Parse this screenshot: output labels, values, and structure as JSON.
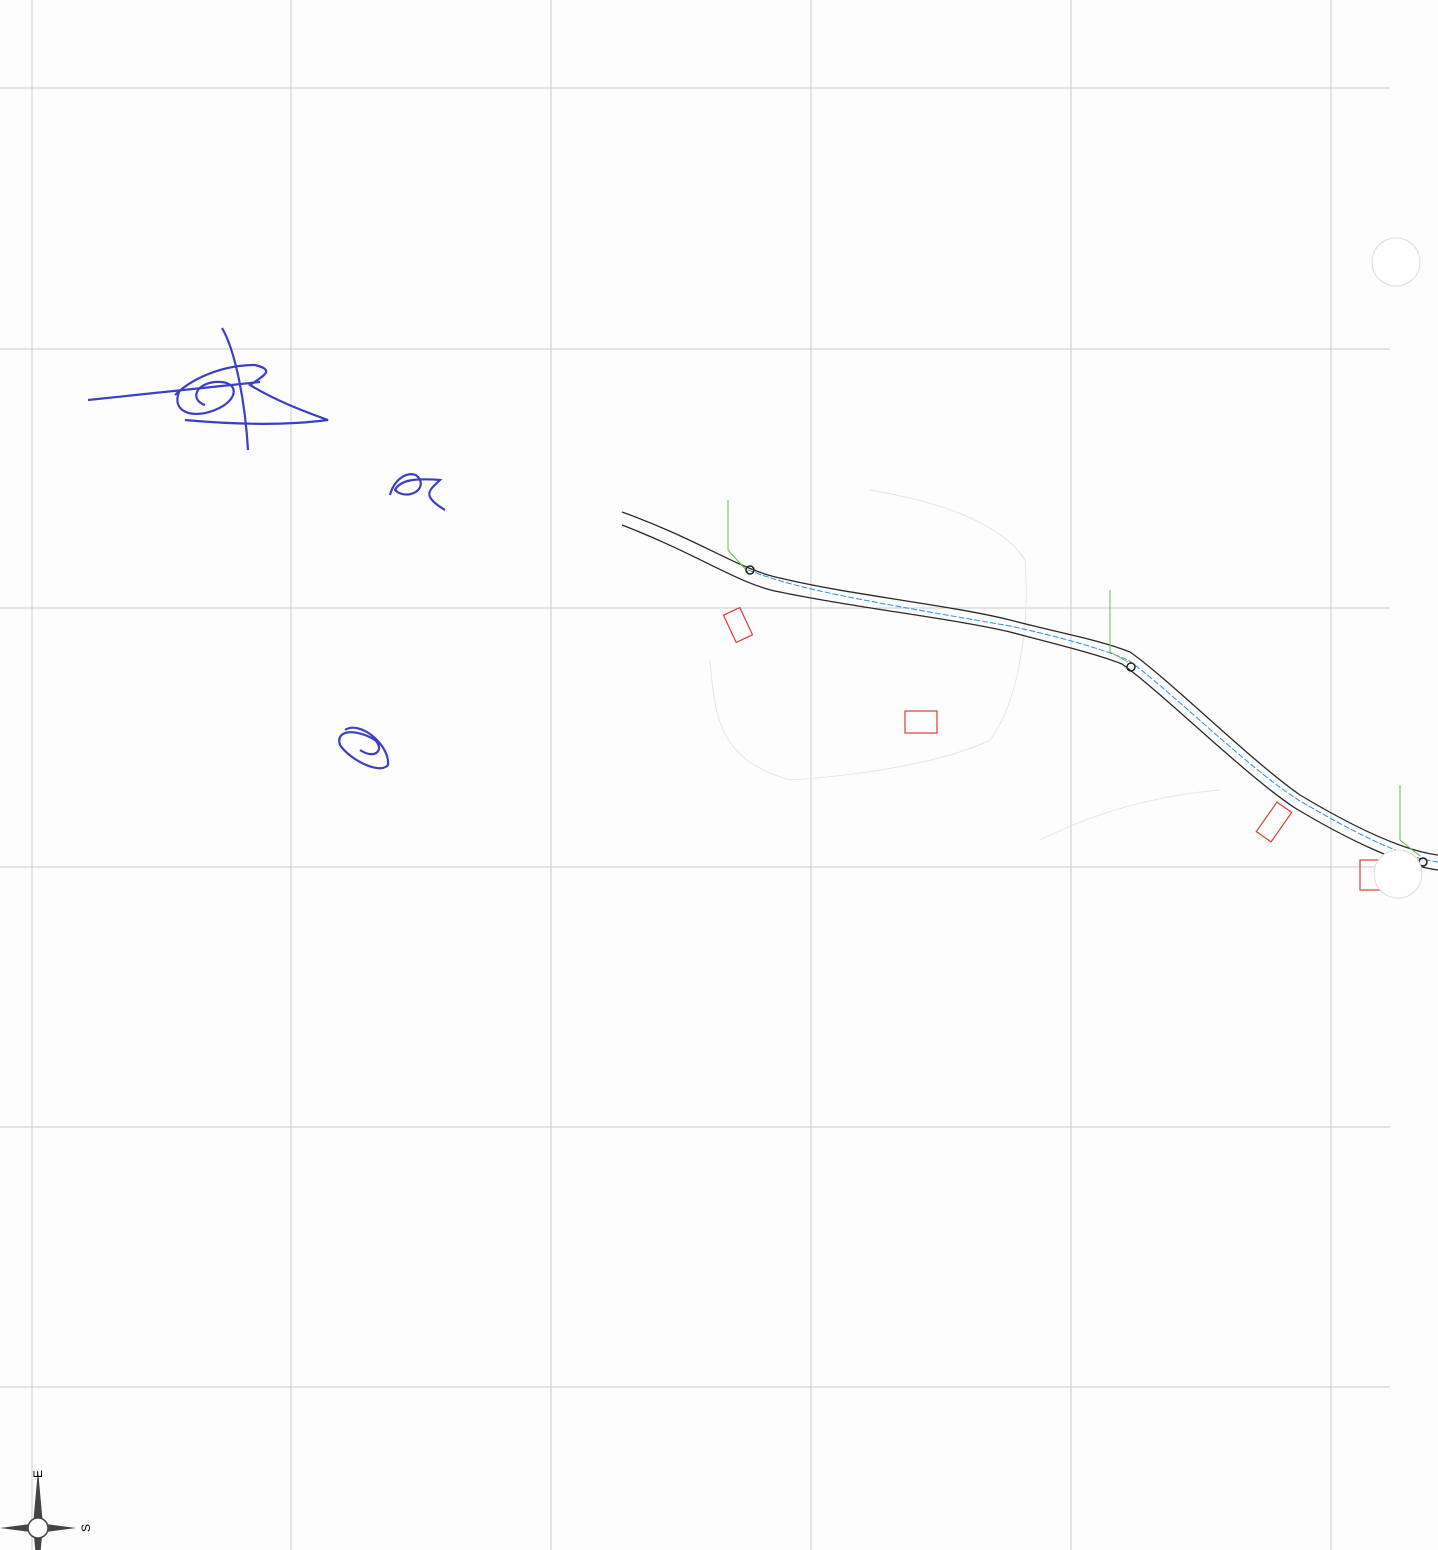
{
  "compass": {
    "east": "E",
    "south": "S"
  }
}
